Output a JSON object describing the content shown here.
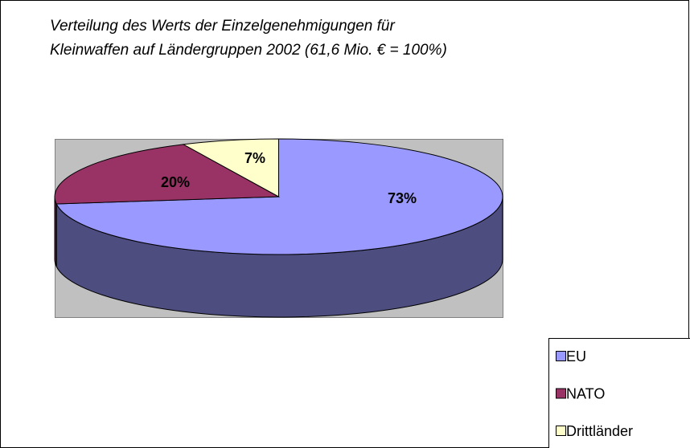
{
  "chart_data": {
    "type": "pie3d",
    "title": [
      "Verteilung des Werts der Einzelgenehmigungen für",
      "Kleinwaffen auf Ländergruppen 2002 (61,6 Mio. € = 100%)"
    ],
    "categories": [
      "EU",
      "NATO",
      "Drittländer"
    ],
    "values": [
      73,
      20,
      7
    ],
    "value_labels": [
      "73%",
      "20%",
      "7%"
    ],
    "colors": [
      "#9999ff",
      "#993366",
      "#ffffcc"
    ],
    "side_colors": [
      "#4d4d80",
      "#4d1a33",
      "#80806a"
    ],
    "plot_background": "#c0c0c0",
    "legend": "bottom-right"
  }
}
